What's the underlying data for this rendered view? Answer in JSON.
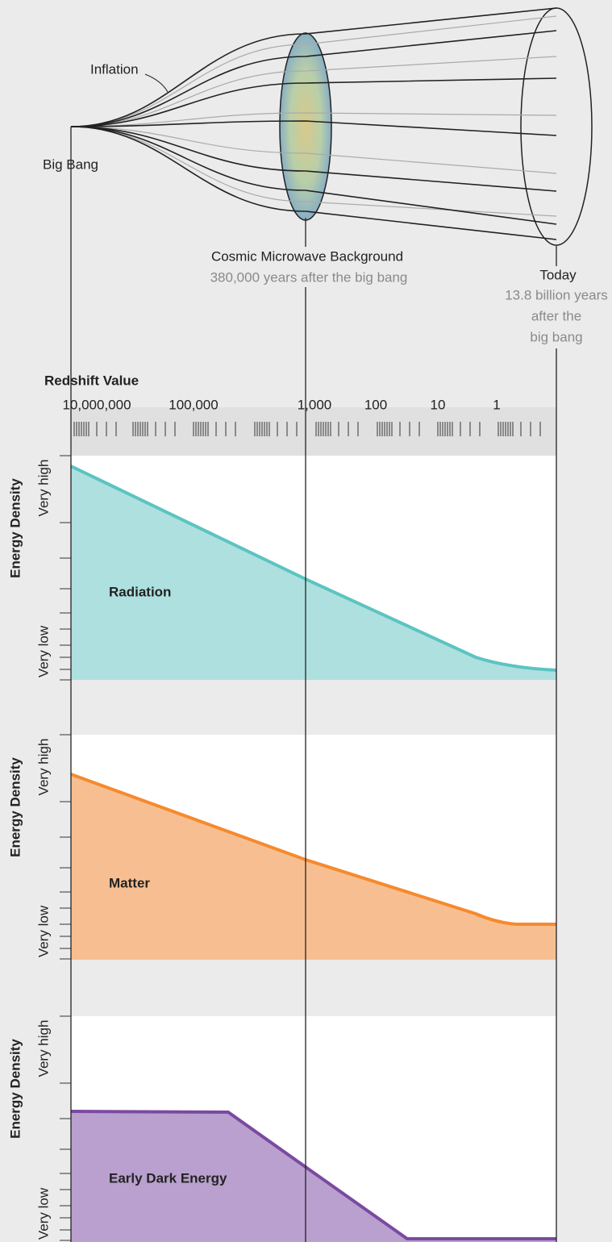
{
  "diagram": {
    "inflation_label": "Inflation",
    "big_bang_label": "Big Bang",
    "cmb": {
      "label": "Cosmic Microwave Background",
      "sublabel": "380,000 years after the big bang"
    },
    "today": {
      "label": "Today",
      "sublabel_lines": [
        "13.8 billion years",
        "after the",
        "big bang"
      ]
    }
  },
  "redshift_axis": {
    "title": "Redshift Value",
    "ticks": [
      "10,000,000",
      "100,000",
      "1,000",
      "100",
      "10",
      "1"
    ]
  },
  "panels": [
    {
      "axis_title": "Energy Density",
      "high_label": "Very high",
      "low_label": "Very low",
      "label": "Radiation"
    },
    {
      "axis_title": "Energy Density",
      "high_label": "Very high",
      "low_label": "Very low",
      "label": "Matter"
    },
    {
      "axis_title": "Energy Density",
      "high_label": "Very high",
      "low_label": "Very low",
      "label": "Early Dark Energy"
    }
  ]
}
